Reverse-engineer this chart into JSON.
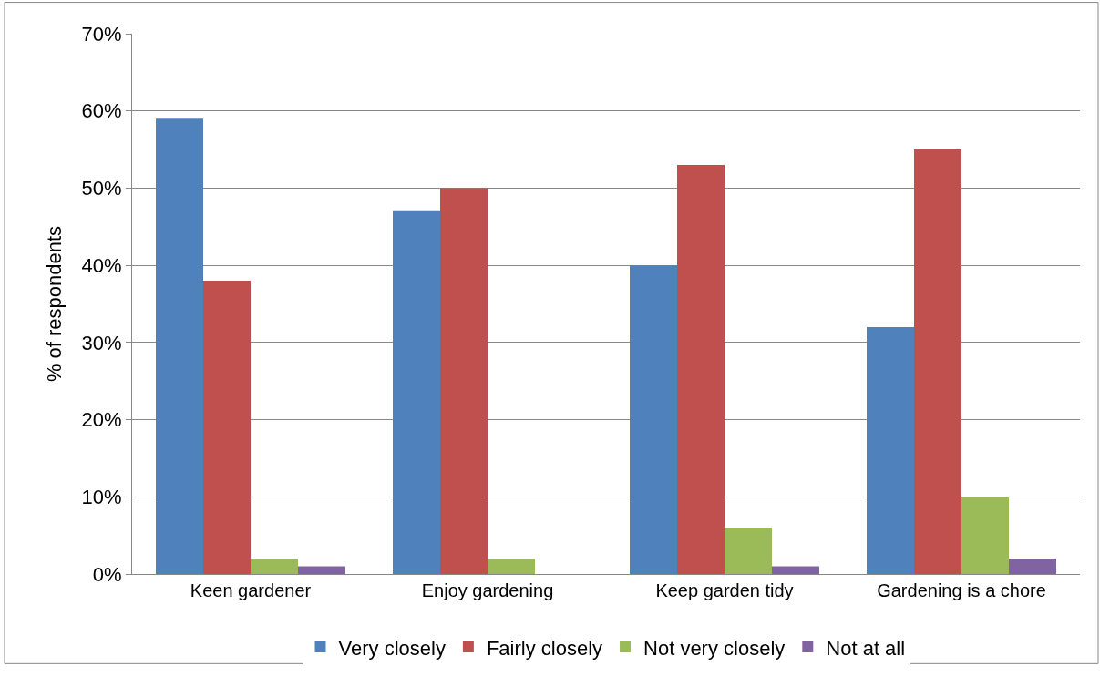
{
  "chart_data": {
    "type": "bar",
    "ylabel": "% of respondents",
    "categories": [
      "Keen gardener",
      "Enjoy gardening",
      "Keep garden tidy",
      "Gardening is a chore"
    ],
    "series": [
      {
        "name": "Very closely",
        "color": "#4f81bd",
        "values": [
          59,
          47,
          40,
          32
        ]
      },
      {
        "name": "Fairly closely",
        "color": "#c0504d",
        "values": [
          38,
          50,
          53,
          55
        ]
      },
      {
        "name": "Not very closely",
        "color": "#9bbb59",
        "values": [
          2,
          2,
          6,
          10
        ]
      },
      {
        "name": "Not at all",
        "color": "#8064a2",
        "values": [
          1,
          0,
          1,
          2
        ]
      }
    ],
    "ylim": [
      0,
      70
    ],
    "yticks": [
      {
        "value": 0,
        "label": "0%"
      },
      {
        "value": 10,
        "label": "10%"
      },
      {
        "value": 20,
        "label": "20%"
      },
      {
        "value": 30,
        "label": "30%"
      },
      {
        "value": 40,
        "label": "40%"
      },
      {
        "value": 50,
        "label": "50%"
      },
      {
        "value": 60,
        "label": "60%"
      },
      {
        "value": 70,
        "label": "70%"
      }
    ],
    "grid": "y",
    "legend": "bottom"
  }
}
